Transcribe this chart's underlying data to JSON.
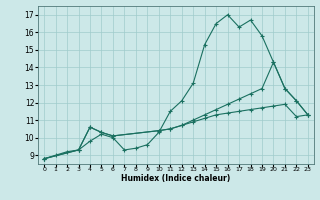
{
  "xlabel": "Humidex (Indice chaleur)",
  "background_color": "#cce8e8",
  "grid_color": "#a0cccc",
  "line_color": "#1a7060",
  "xlim": [
    -0.5,
    23.5
  ],
  "ylim": [
    8.5,
    17.5
  ],
  "xticks": [
    0,
    1,
    2,
    3,
    4,
    5,
    6,
    7,
    8,
    9,
    10,
    11,
    12,
    13,
    14,
    15,
    16,
    17,
    18,
    19,
    20,
    21,
    22,
    23
  ],
  "yticks": [
    9,
    10,
    11,
    12,
    13,
    14,
    15,
    16,
    17
  ],
  "line1_x": [
    0,
    1,
    2,
    3,
    4,
    5,
    6,
    7,
    8,
    9,
    10,
    11,
    12,
    13,
    14,
    15,
    16,
    17,
    18,
    19,
    20,
    21,
    22,
    23
  ],
  "line1_y": [
    8.8,
    9.0,
    9.2,
    9.3,
    9.8,
    10.2,
    10.0,
    9.3,
    9.4,
    9.6,
    10.3,
    11.5,
    12.1,
    13.1,
    15.3,
    16.5,
    17.0,
    16.3,
    16.7,
    15.8,
    14.3,
    12.8,
    12.1,
    11.3
  ],
  "line2_x": [
    0,
    3,
    4,
    5,
    6,
    10,
    11,
    12,
    13,
    14,
    15,
    16,
    17,
    18,
    19,
    20,
    21,
    22,
    23
  ],
  "line2_y": [
    8.8,
    9.3,
    10.6,
    10.3,
    10.1,
    10.4,
    10.5,
    10.7,
    11.0,
    11.3,
    11.6,
    11.9,
    12.2,
    12.5,
    12.8,
    14.3,
    12.8,
    12.1,
    11.3
  ],
  "line3_x": [
    0,
    3,
    4,
    5,
    6,
    10,
    11,
    12,
    13,
    14,
    15,
    16,
    17,
    18,
    19,
    20,
    21,
    22,
    23
  ],
  "line3_y": [
    8.8,
    9.3,
    10.6,
    10.3,
    10.1,
    10.4,
    10.5,
    10.7,
    10.9,
    11.1,
    11.3,
    11.4,
    11.5,
    11.6,
    11.7,
    11.8,
    11.9,
    11.2,
    11.3
  ]
}
